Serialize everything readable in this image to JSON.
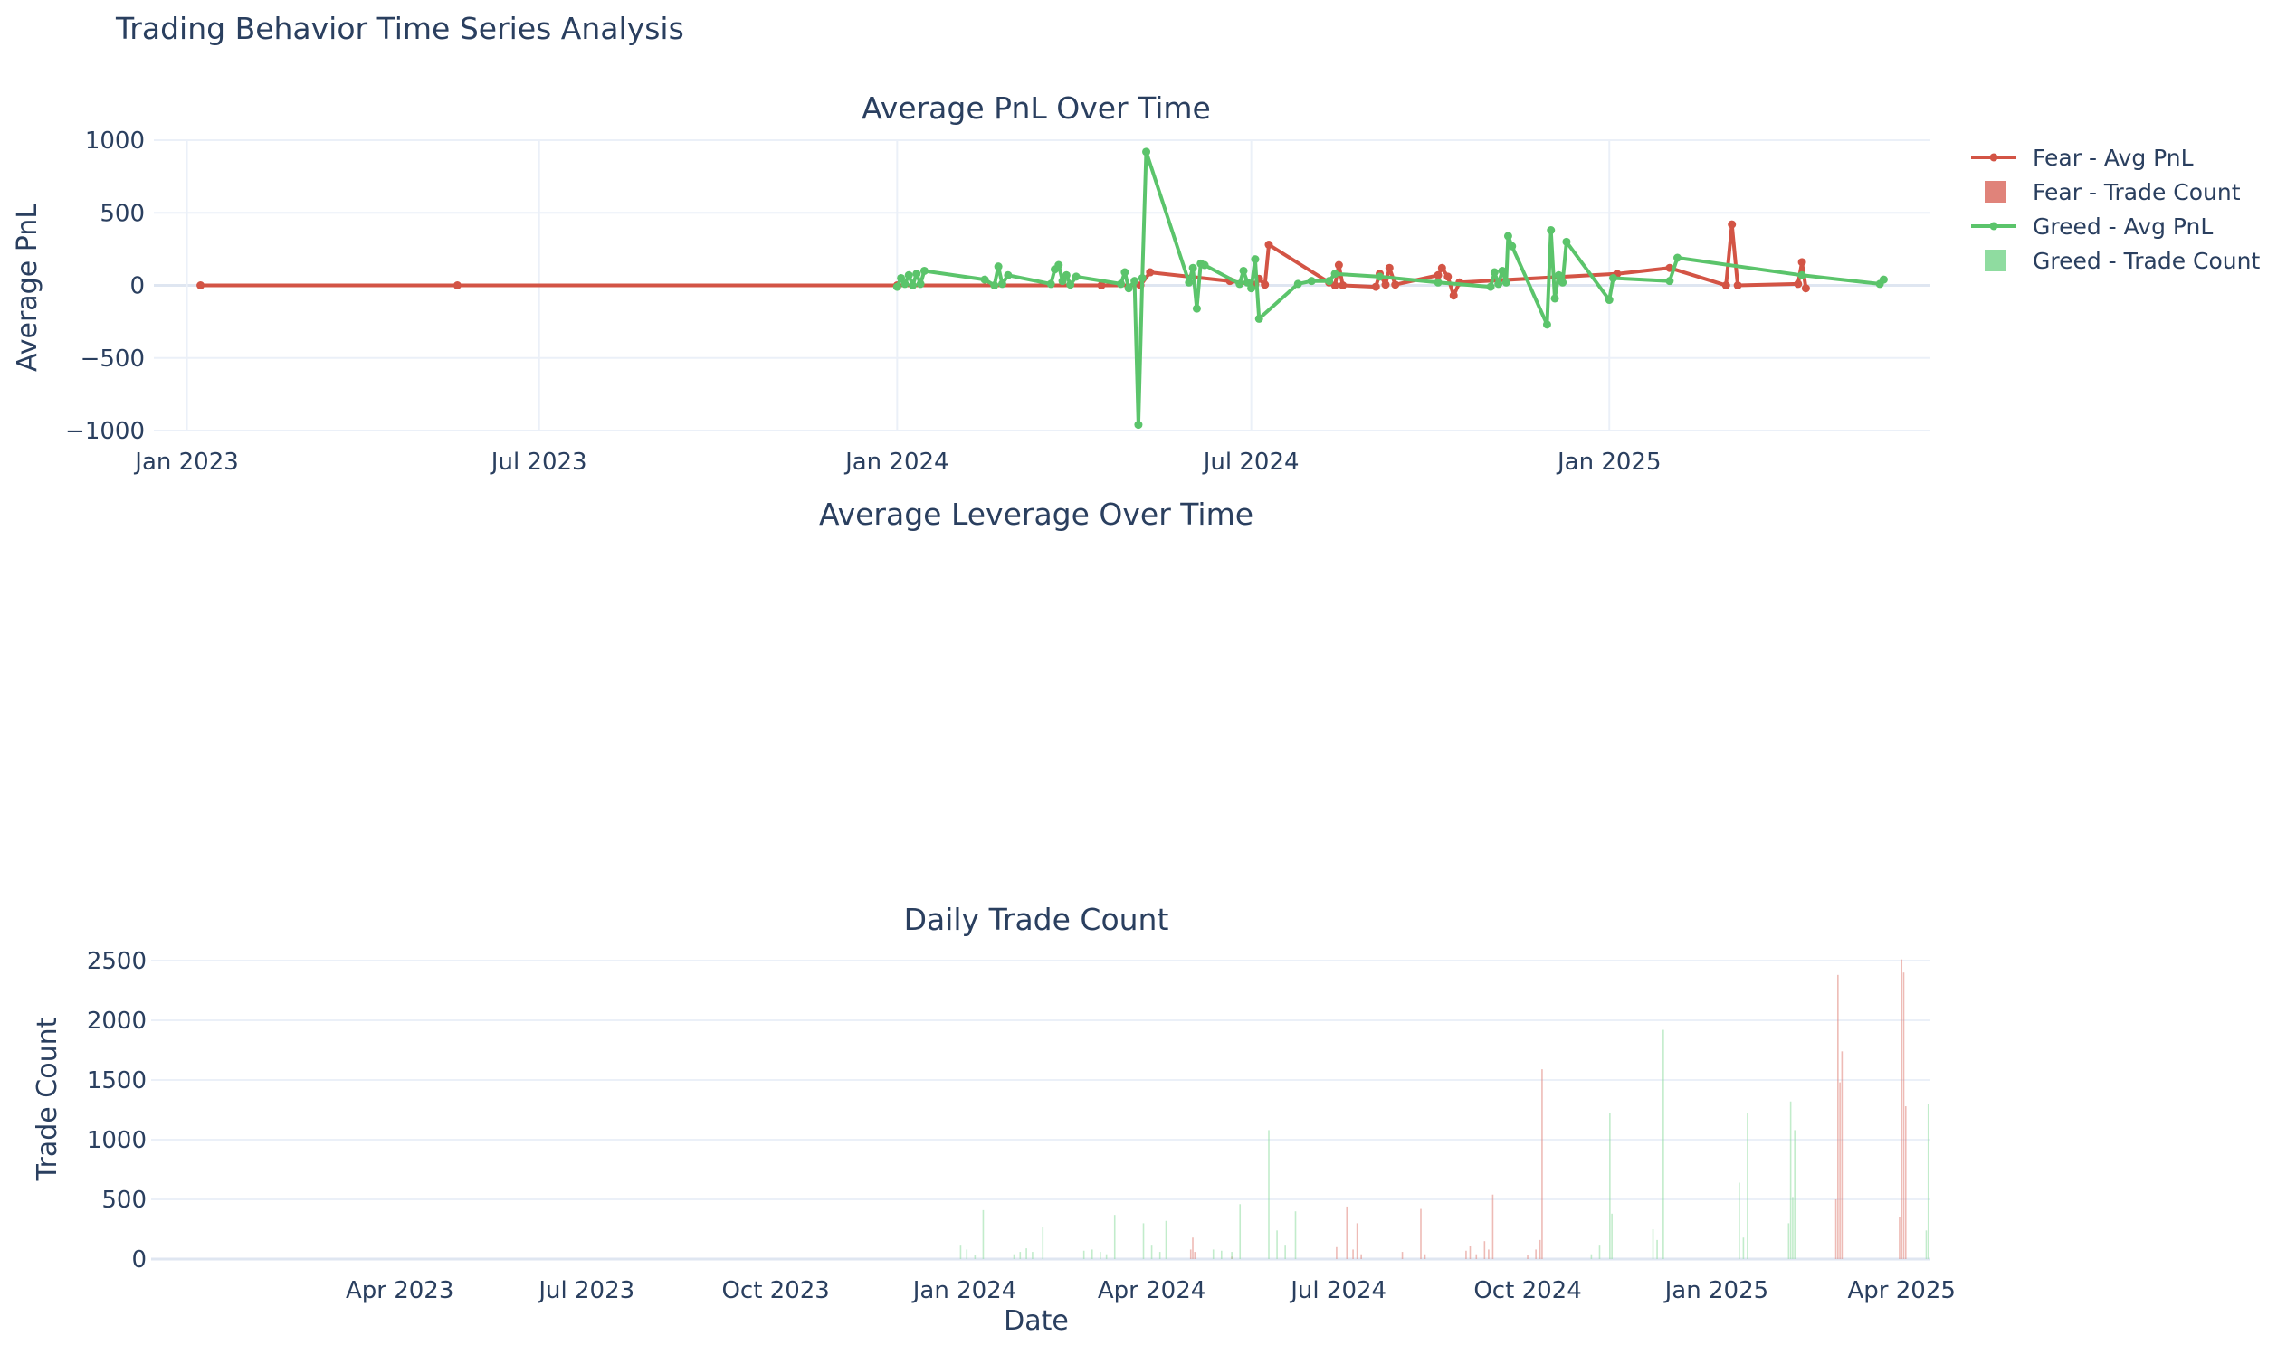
{
  "figure_title": "Trading Behavior Time Series Analysis",
  "colors": {
    "fear": "#d35445",
    "greed": "#5bc46b",
    "fear_bar": "#e0837a",
    "greed_bar": "#8fdca0"
  },
  "legend": [
    {
      "label": "Fear - Avg PnL",
      "kind": "line",
      "color": "#d35445"
    },
    {
      "label": "Fear - Trade Count",
      "kind": "bar",
      "color": "#e0837a"
    },
    {
      "label": "Greed - Avg PnL",
      "kind": "line",
      "color": "#5bc46b"
    },
    {
      "label": "Greed - Trade Count",
      "kind": "bar",
      "color": "#8fdca0"
    }
  ],
  "chart_data": [
    {
      "type": "line",
      "title": "Average PnL Over Time",
      "xlabel": "",
      "ylabel": "Average PnL",
      "xlim": [
        "2022-12-15",
        "2025-06-15"
      ],
      "ylim": [
        -1000,
        1000
      ],
      "xticks": [
        {
          "date": "2023-01-01",
          "label": "Jan 2023"
        },
        {
          "date": "2023-07-01",
          "label": "Jul 2023"
        },
        {
          "date": "2024-01-01",
          "label": "Jan 2024"
        },
        {
          "date": "2024-07-01",
          "label": "Jul 2024"
        },
        {
          "date": "2025-01-01",
          "label": "Jan 2025"
        }
      ],
      "yticks": [
        {
          "value": 1000,
          "label": "1000"
        },
        {
          "value": 500,
          "label": "500"
        },
        {
          "value": 0,
          "label": "0"
        },
        {
          "value": -500,
          "label": "−500"
        },
        {
          "value": -1000,
          "label": "−1000"
        }
      ],
      "series": [
        {
          "name": "Fear - Avg PnL",
          "color": "#d35445",
          "points": [
            [
              "2023-01-08",
              0
            ],
            [
              "2023-05-20",
              0
            ],
            [
              "2024-01-01",
              0
            ],
            [
              "2024-04-15",
              0
            ],
            [
              "2024-05-05",
              0
            ],
            [
              "2024-05-10",
              90
            ],
            [
              "2024-06-20",
              30
            ],
            [
              "2024-07-03",
              5
            ],
            [
              "2024-07-05",
              45
            ],
            [
              "2024-07-08",
              5
            ],
            [
              "2024-07-10",
              280
            ],
            [
              "2024-08-10",
              20
            ],
            [
              "2024-08-13",
              0
            ],
            [
              "2024-08-15",
              140
            ],
            [
              "2024-08-17",
              0
            ],
            [
              "2024-09-03",
              -10
            ],
            [
              "2024-09-05",
              80
            ],
            [
              "2024-09-08",
              5
            ],
            [
              "2024-09-10",
              120
            ],
            [
              "2024-09-13",
              5
            ],
            [
              "2024-10-05",
              70
            ],
            [
              "2024-10-07",
              120
            ],
            [
              "2024-10-10",
              60
            ],
            [
              "2024-10-13",
              -70
            ],
            [
              "2024-10-16",
              20
            ],
            [
              "2025-01-05",
              80
            ],
            [
              "2025-02-01",
              120
            ],
            [
              "2025-03-02",
              0
            ],
            [
              "2025-03-05",
              420
            ],
            [
              "2025-03-08",
              0
            ],
            [
              "2025-04-08",
              10
            ],
            [
              "2025-04-10",
              160
            ],
            [
              "2025-04-12",
              -20
            ]
          ]
        },
        {
          "name": "Greed - Avg PnL",
          "color": "#5bc46b",
          "points": [
            [
              "2024-01-01",
              -10
            ],
            [
              "2024-01-03",
              50
            ],
            [
              "2024-01-05",
              10
            ],
            [
              "2024-01-07",
              70
            ],
            [
              "2024-01-09",
              0
            ],
            [
              "2024-01-11",
              80
            ],
            [
              "2024-01-13",
              10
            ],
            [
              "2024-01-15",
              100
            ],
            [
              "2024-02-15",
              40
            ],
            [
              "2024-02-20",
              0
            ],
            [
              "2024-02-22",
              130
            ],
            [
              "2024-02-24",
              10
            ],
            [
              "2024-02-27",
              70
            ],
            [
              "2024-03-20",
              10
            ],
            [
              "2024-03-22",
              110
            ],
            [
              "2024-03-24",
              140
            ],
            [
              "2024-03-26",
              30
            ],
            [
              "2024-03-28",
              70
            ],
            [
              "2024-03-30",
              5
            ],
            [
              "2024-04-02",
              60
            ],
            [
              "2024-04-25",
              10
            ],
            [
              "2024-04-27",
              90
            ],
            [
              "2024-04-29",
              -20
            ],
            [
              "2024-05-02",
              30
            ],
            [
              "2024-05-04",
              -960
            ],
            [
              "2024-05-06",
              50
            ],
            [
              "2024-05-08",
              920
            ],
            [
              "2024-05-30",
              20
            ],
            [
              "2024-06-01",
              120
            ],
            [
              "2024-06-03",
              -160
            ],
            [
              "2024-06-05",
              150
            ],
            [
              "2024-06-07",
              140
            ],
            [
              "2024-06-25",
              10
            ],
            [
              "2024-06-27",
              100
            ],
            [
              "2024-06-29",
              20
            ],
            [
              "2024-07-01",
              -20
            ],
            [
              "2024-07-03",
              180
            ],
            [
              "2024-07-05",
              -230
            ],
            [
              "2024-07-25",
              10
            ],
            [
              "2024-08-01",
              30
            ],
            [
              "2024-08-10",
              30
            ],
            [
              "2024-08-13",
              80
            ],
            [
              "2024-09-05",
              60
            ],
            [
              "2024-10-05",
              20
            ],
            [
              "2024-11-01",
              -10
            ],
            [
              "2024-11-03",
              90
            ],
            [
              "2024-11-05",
              10
            ],
            [
              "2024-11-07",
              100
            ],
            [
              "2024-11-09",
              20
            ],
            [
              "2024-11-10",
              340
            ],
            [
              "2024-11-12",
              270
            ],
            [
              "2024-11-30",
              -270
            ],
            [
              "2024-12-02",
              380
            ],
            [
              "2024-12-04",
              -90
            ],
            [
              "2024-12-06",
              70
            ],
            [
              "2024-12-08",
              20
            ],
            [
              "2024-12-10",
              300
            ],
            [
              "2025-01-01",
              -100
            ],
            [
              "2025-01-03",
              50
            ],
            [
              "2025-02-01",
              30
            ],
            [
              "2025-02-05",
              190
            ],
            [
              "2025-04-10",
              70
            ],
            [
              "2025-05-20",
              10
            ],
            [
              "2025-05-22",
              40
            ]
          ]
        }
      ]
    },
    {
      "type": "line",
      "title": "Average Leverage Over Time",
      "xlabel": "",
      "ylabel": "",
      "series": []
    },
    {
      "type": "bar",
      "title": "Daily Trade Count",
      "xlabel": "Date",
      "ylabel": "Trade Count",
      "xlim": [
        "2022-12-01",
        "2025-04-15"
      ],
      "ylim": [
        0,
        2500
      ],
      "xticks": [
        {
          "date": "2023-04-01",
          "label": "Apr 2023"
        },
        {
          "date": "2023-07-01",
          "label": "Jul 2023"
        },
        {
          "date": "2023-10-01",
          "label": "Oct 2023"
        },
        {
          "date": "2024-01-01",
          "label": "Jan 2024"
        },
        {
          "date": "2024-04-01",
          "label": "Apr 2024"
        },
        {
          "date": "2024-07-01",
          "label": "Jul 2024"
        },
        {
          "date": "2024-10-01",
          "label": "Oct 2024"
        },
        {
          "date": "2025-01-01",
          "label": "Jan 2025"
        },
        {
          "date": "2025-04-01",
          "label": "Apr 2025"
        }
      ],
      "yticks": [
        {
          "value": 2500,
          "label": "2500"
        },
        {
          "value": 2000,
          "label": "2000"
        },
        {
          "value": 1500,
          "label": "1500"
        },
        {
          "value": 1000,
          "label": "1000"
        },
        {
          "value": 500,
          "label": "500"
        },
        {
          "value": 0,
          "label": "0"
        }
      ],
      "series": [
        {
          "name": "Fear - Trade Count",
          "color": "#e0837a",
          "points": [
            [
              "2024-04-20",
              80
            ],
            [
              "2024-04-21",
              180
            ],
            [
              "2024-04-22",
              60
            ],
            [
              "2024-05-10",
              20
            ],
            [
              "2024-06-30",
              100
            ],
            [
              "2024-07-05",
              440
            ],
            [
              "2024-07-08",
              80
            ],
            [
              "2024-07-10",
              300
            ],
            [
              "2024-07-12",
              40
            ],
            [
              "2024-08-01",
              60
            ],
            [
              "2024-08-10",
              420
            ],
            [
              "2024-08-12",
              40
            ],
            [
              "2024-09-01",
              70
            ],
            [
              "2024-09-03",
              110
            ],
            [
              "2024-09-06",
              40
            ],
            [
              "2024-09-10",
              150
            ],
            [
              "2024-09-12",
              80
            ],
            [
              "2024-09-14",
              540
            ],
            [
              "2024-10-01",
              30
            ],
            [
              "2024-10-05",
              80
            ],
            [
              "2024-10-07",
              160
            ],
            [
              "2024-10-08",
              1590
            ],
            [
              "2025-02-28",
              500
            ],
            [
              "2025-03-01",
              2380
            ],
            [
              "2025-03-02",
              1480
            ],
            [
              "2025-03-03",
              1740
            ],
            [
              "2025-03-31",
              350
            ],
            [
              "2025-04-01",
              2510
            ],
            [
              "2025-04-02",
              2400
            ],
            [
              "2025-04-03",
              1280
            ]
          ]
        },
        {
          "name": "Greed - Trade Count",
          "color": "#8fdca0",
          "points": [
            [
              "2023-12-30",
              120
            ],
            [
              "2024-01-02",
              80
            ],
            [
              "2024-01-06",
              30
            ],
            [
              "2024-01-10",
              410
            ],
            [
              "2024-01-25",
              40
            ],
            [
              "2024-01-28",
              60
            ],
            [
              "2024-01-31",
              90
            ],
            [
              "2024-02-03",
              60
            ],
            [
              "2024-02-08",
              270
            ],
            [
              "2024-02-28",
              70
            ],
            [
              "2024-03-03",
              80
            ],
            [
              "2024-03-07",
              60
            ],
            [
              "2024-03-10",
              40
            ],
            [
              "2024-03-14",
              370
            ],
            [
              "2024-03-28",
              300
            ],
            [
              "2024-04-01",
              120
            ],
            [
              "2024-04-05",
              60
            ],
            [
              "2024-04-08",
              320
            ],
            [
              "2024-05-01",
              80
            ],
            [
              "2024-05-05",
              70
            ],
            [
              "2024-05-10",
              60
            ],
            [
              "2024-05-14",
              460
            ],
            [
              "2024-05-28",
              1080
            ],
            [
              "2024-06-01",
              240
            ],
            [
              "2024-06-05",
              120
            ],
            [
              "2024-06-10",
              400
            ],
            [
              "2024-11-01",
              40
            ],
            [
              "2024-11-05",
              120
            ],
            [
              "2024-11-10",
              1220
            ],
            [
              "2024-11-11",
              380
            ],
            [
              "2024-12-01",
              250
            ],
            [
              "2024-12-03",
              160
            ],
            [
              "2024-12-06",
              1920
            ],
            [
              "2025-01-12",
              640
            ],
            [
              "2025-01-14",
              180
            ],
            [
              "2025-01-16",
              1220
            ],
            [
              "2025-02-05",
              300
            ],
            [
              "2025-02-06",
              1320
            ],
            [
              "2025-02-07",
              520
            ],
            [
              "2025-02-08",
              1080
            ],
            [
              "2025-04-13",
              240
            ],
            [
              "2025-04-14",
              1300
            ]
          ]
        }
      ]
    }
  ]
}
